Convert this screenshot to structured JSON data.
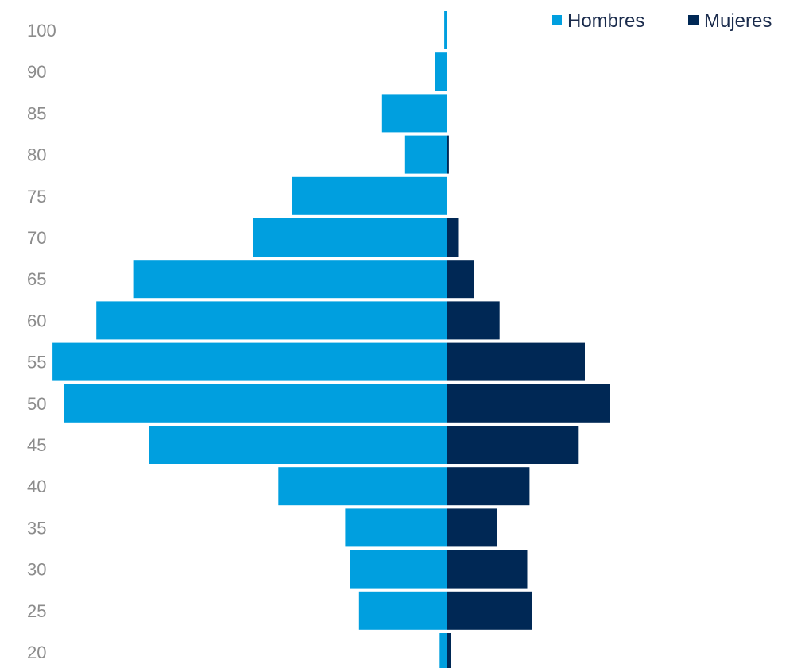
{
  "chart_data": {
    "type": "bar",
    "orientation": "horizontal",
    "layout": "population-pyramid",
    "title": "",
    "xlabel": "",
    "ylabel": "",
    "categories": [
      "20",
      "25",
      "30",
      "35",
      "40",
      "45",
      "50",
      "55",
      "60",
      "65",
      "70",
      "75",
      "80",
      "85",
      "90",
      "100"
    ],
    "series": [
      {
        "name": "Hombres",
        "color": "#009fdf",
        "side": "left",
        "values": [
          0.3,
          3.8,
          4.2,
          4.4,
          7.3,
          12.9,
          16.6,
          17.1,
          15.2,
          13.6,
          8.4,
          6.7,
          1.8,
          2.8,
          0.5,
          0.1
        ]
      },
      {
        "name": "Mujeres",
        "color": "#002855",
        "side": "right",
        "values": [
          0.2,
          3.7,
          3.5,
          2.2,
          3.6,
          5.7,
          7.1,
          6.0,
          2.3,
          1.2,
          0.5,
          0,
          0.1,
          0,
          0,
          0
        ]
      }
    ],
    "legend": {
      "position": "top-right",
      "items": [
        "Hombres",
        "Mujeres"
      ]
    },
    "grid": false
  }
}
